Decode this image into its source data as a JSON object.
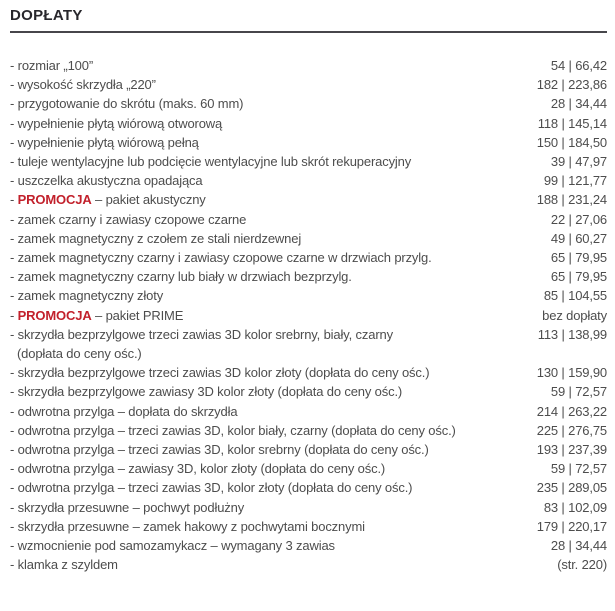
{
  "header": {
    "title": "DOPŁATY"
  },
  "bullet": "-",
  "colors": {
    "promo_red": "#c2202b",
    "body_text": "#4d4d4d",
    "heading_text": "#28272c"
  },
  "rows": [
    {
      "label": "rozmiar „100”",
      "price": "54 | 66,42"
    },
    {
      "label": "wysokość skrzydła „220”",
      "price": "182 | 223,86"
    },
    {
      "label": "przygotowanie do skrótu (maks. 60 mm)",
      "price": "28 | 34,44"
    },
    {
      "label": "wypełnienie płytą wiórową otworową",
      "price": "118 | 145,14"
    },
    {
      "label": "wypełnienie płytą wiórową pełną",
      "price": "150 | 184,50"
    },
    {
      "label": "tuleje wentylacyjne lub podcięcie wentylacyjne lub skrót rekuperacyjny",
      "price": "39 | 47,97"
    },
    {
      "label": "uszczelka akustyczna opadająca",
      "price": "99 | 121,77"
    },
    {
      "promo": "PROMOCJA",
      "label": " – pakiet akustyczny",
      "price": "188 | 231,24"
    },
    {
      "label": "zamek czarny i zawiasy czopowe czarne",
      "price": "22 | 27,06"
    },
    {
      "label": "zamek magnetyczny z czołem ze stali nierdzewnej",
      "price": "49 | 60,27"
    },
    {
      "label": "zamek magnetyczny czarny i zawiasy czopowe czarne w drzwiach przylg.",
      "price": "65 | 79,95"
    },
    {
      "label": "zamek magnetyczny czarny lub biały w drzwiach bezprzylg.",
      "price": "65 | 79,95"
    },
    {
      "label": "zamek magnetyczny złoty",
      "price": "85 | 104,55"
    },
    {
      "promo": "PROMOCJA",
      "label": " – pakiet PRIME",
      "price": "bez dopłaty"
    },
    {
      "label": "skrzydła bezprzylgowe trzeci zawias 3D kolor srebrny, biały, czarny",
      "sublabel": "(dopłata do ceny ośc.)",
      "price": "113 | 138,99"
    },
    {
      "label": "skrzydła bezprzylgowe trzeci zawias 3D kolor złoty (dopłata do ceny ośc.)",
      "price": "130 | 159,90"
    },
    {
      "label": "skrzydła bezprzylgowe zawiasy 3D kolor złoty (dopłata do ceny ośc.)",
      "price": "59 | 72,57"
    },
    {
      "label": "odwrotna przylga – dopłata do skrzydła",
      "price": "214 | 263,22"
    },
    {
      "label": "odwrotna przylga – trzeci zawias 3D, kolor biały,  czarny (dopłata do ceny ośc.)",
      "price": "225 | 276,75"
    },
    {
      "label": "odwrotna przylga – trzeci zawias 3D, kolor srebrny  (dopłata do ceny ośc.)",
      "price": "193 | 237,39"
    },
    {
      "label": "odwrotna przylga – zawiasy 3D, kolor złoty  (dopłata do ceny ośc.)",
      "price": "59 | 72,57"
    },
    {
      "label": "odwrotna przylga – trzeci zawias 3D, kolor złoty  (dopłata do ceny ośc.)",
      "price": "235 | 289,05"
    },
    {
      "label": "skrzydła przesuwne – pochwyt podłużny",
      "price": "83 | 102,09"
    },
    {
      "label": "skrzydła przesuwne – zamek hakowy z pochwytami bocznymi",
      "price": "179 | 220,17"
    },
    {
      "label": "wzmocnienie pod samozamykacz – wymagany 3 zawias",
      "price": "28 | 34,44"
    },
    {
      "label": "klamka z szyldem",
      "price": "(str. 220)"
    }
  ]
}
